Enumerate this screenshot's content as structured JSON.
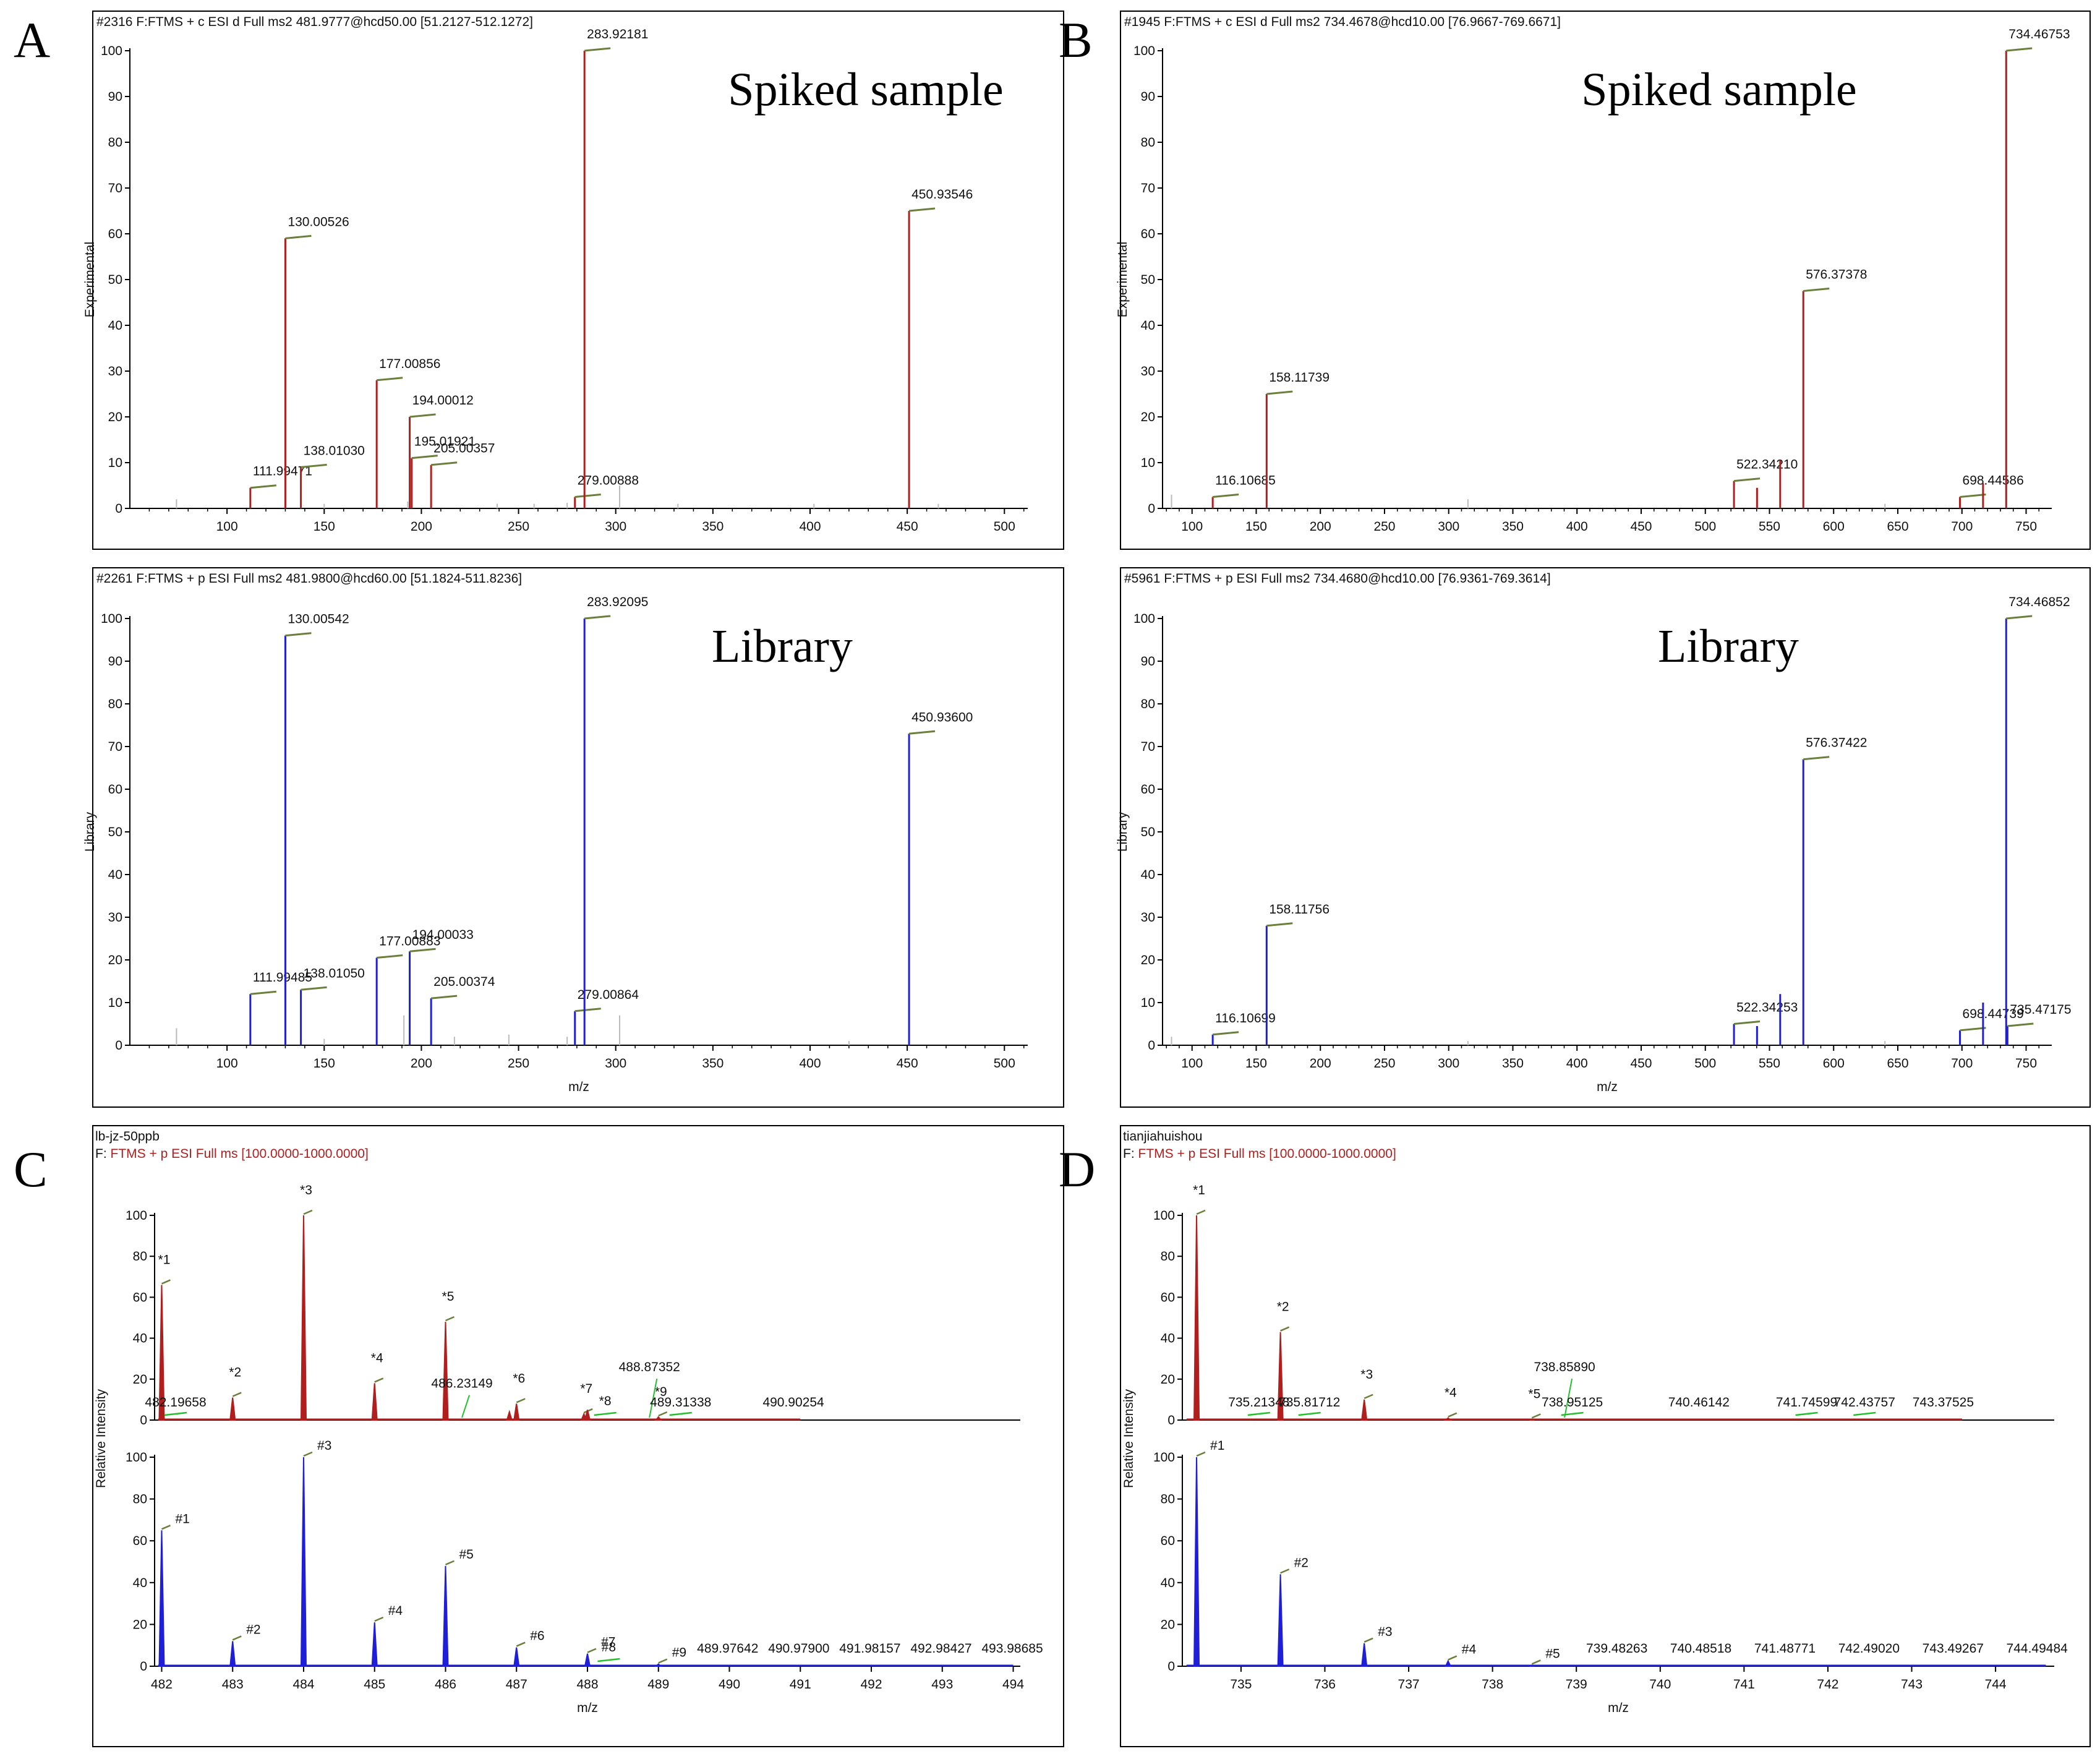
{
  "figure": {
    "colors": {
      "red": "#b01e1e",
      "blue": "#1f1fd8",
      "green": "#6a7f3a",
      "lightgreen": "#22c02a",
      "grey": "#bbbbbb"
    },
    "panel_letters": [
      "A",
      "B",
      "C",
      "D"
    ]
  },
  "chart_data": [
    {
      "id": "A-top",
      "type": "bar",
      "color": "red",
      "letter": "A",
      "header": "#2316  F:FTMS + c ESI d Full ms2 481.9777@hcd50.00 [51.2127-512.1272]",
      "ylabel": "Experimental",
      "xlabel": "",
      "big_label": "Spiked sample",
      "xlim": [
        50,
        512
      ],
      "ylim": [
        0,
        100
      ],
      "xticks": [
        100,
        150,
        200,
        250,
        300,
        350,
        400,
        450,
        500
      ],
      "yticks": [
        0,
        10,
        20,
        30,
        40,
        50,
        60,
        70,
        80,
        90,
        100
      ],
      "peaks": [
        {
          "x": 111.99471,
          "y": 4.5,
          "label": "111.99471"
        },
        {
          "x": 130.00526,
          "y": 59,
          "label": "130.00526"
        },
        {
          "x": 138.0103,
          "y": 9,
          "label": "138.01030"
        },
        {
          "x": 177.00856,
          "y": 28,
          "label": "177.00856"
        },
        {
          "x": 194.00012,
          "y": 20,
          "label": "194.00012"
        },
        {
          "x": 195.01921,
          "y": 11,
          "label": "195.01921"
        },
        {
          "x": 205.00357,
          "y": 9.5,
          "label": "205.00357"
        },
        {
          "x": 279.00888,
          "y": 2.5,
          "label": "279.00888"
        },
        {
          "x": 283.92181,
          "y": 100,
          "label": "283.92181"
        },
        {
          "x": 450.93546,
          "y": 65,
          "label": "450.93546"
        }
      ],
      "minor": [
        [
          74,
          2
        ],
        [
          150,
          1
        ],
        [
          193,
          1.5
        ],
        [
          239,
          1
        ],
        [
          258,
          1
        ],
        [
          275,
          1.2
        ],
        [
          302,
          5
        ],
        [
          332,
          1
        ],
        [
          402,
          1
        ],
        [
          466,
          1
        ]
      ]
    },
    {
      "id": "A-bot",
      "type": "bar",
      "color": "blue",
      "letter": "",
      "header": "#2261  F:FTMS + p ESI Full ms2 481.9800@hcd60.00 [51.1824-511.8236]",
      "ylabel": "Library",
      "xlabel": "m/z",
      "big_label": "Library",
      "xlim": [
        50,
        512
      ],
      "ylim": [
        0,
        100
      ],
      "xticks": [
        100,
        150,
        200,
        250,
        300,
        350,
        400,
        450,
        500
      ],
      "yticks": [
        0,
        10,
        20,
        30,
        40,
        50,
        60,
        70,
        80,
        90,
        100
      ],
      "peaks": [
        {
          "x": 111.99485,
          "y": 12,
          "label": "111.99485"
        },
        {
          "x": 130.00542,
          "y": 96,
          "label": "130.00542"
        },
        {
          "x": 138.0105,
          "y": 13,
          "label": "138.01050"
        },
        {
          "x": 177.00883,
          "y": 20.5,
          "label": "177.00883"
        },
        {
          "x": 194.00033,
          "y": 22,
          "label": "194.00033"
        },
        {
          "x": 205.00374,
          "y": 11,
          "label": "205.00374"
        },
        {
          "x": 279.00864,
          "y": 8,
          "label": "279.00864"
        },
        {
          "x": 283.92095,
          "y": 100,
          "label": "283.92095"
        },
        {
          "x": 450.936,
          "y": 73,
          "label": "450.93600"
        }
      ],
      "minor": [
        [
          74,
          4
        ],
        [
          150,
          1.5
        ],
        [
          191,
          7
        ],
        [
          217,
          2
        ],
        [
          245,
          2.5
        ],
        [
          275,
          2
        ],
        [
          302,
          7
        ],
        [
          420,
          1
        ]
      ]
    },
    {
      "id": "B-top",
      "type": "bar",
      "color": "red",
      "letter": "B",
      "header": "#1945  F:FTMS + c ESI d Full ms2 734.4678@hcd10.00 [76.9667-769.6671]",
      "ylabel": "Experimental",
      "xlabel": "",
      "big_label": "Spiked sample",
      "xlim": [
        77,
        770
      ],
      "ylim": [
        0,
        100
      ],
      "xticks": [
        100,
        150,
        200,
        250,
        300,
        350,
        400,
        450,
        500,
        550,
        600,
        650,
        700,
        750
      ],
      "yticks": [
        0,
        10,
        20,
        30,
        40,
        50,
        60,
        70,
        80,
        90,
        100
      ],
      "peaks": [
        {
          "x": 116.10685,
          "y": 2.5,
          "label": "116.10685"
        },
        {
          "x": 158.11739,
          "y": 25,
          "label": "158.11739"
        },
        {
          "x": 522.3421,
          "y": 6,
          "label": "522.34210"
        },
        {
          "x": 540.3,
          "y": 4.5,
          "label": ""
        },
        {
          "x": 558.35,
          "y": 10.5,
          "label": ""
        },
        {
          "x": 576.37378,
          "y": 47.5,
          "label": "576.37378"
        },
        {
          "x": 698.44586,
          "y": 2.5,
          "label": "698.44586"
        },
        {
          "x": 716.45,
          "y": 5.5,
          "label": ""
        },
        {
          "x": 734.46753,
          "y": 100,
          "label": "734.46753"
        }
      ],
      "minor": [
        [
          84,
          3
        ],
        [
          315,
          2
        ],
        [
          640,
          1
        ]
      ]
    },
    {
      "id": "B-bot",
      "type": "bar",
      "color": "blue",
      "letter": "",
      "header": "#5961  F:FTMS + p ESI Full ms2 734.4680@hcd10.00 [76.9361-769.3614]",
      "ylabel": "Library",
      "xlabel": "m/z",
      "big_label": "Library",
      "xlim": [
        77,
        770
      ],
      "ylim": [
        0,
        100
      ],
      "xticks": [
        100,
        150,
        200,
        250,
        300,
        350,
        400,
        450,
        500,
        550,
        600,
        650,
        700,
        750
      ],
      "yticks": [
        0,
        10,
        20,
        30,
        40,
        50,
        60,
        70,
        80,
        90,
        100
      ],
      "peaks": [
        {
          "x": 116.10699,
          "y": 2.5,
          "label": "116.10699"
        },
        {
          "x": 158.11756,
          "y": 28,
          "label": "158.11756"
        },
        {
          "x": 522.34253,
          "y": 5,
          "label": "522.34253"
        },
        {
          "x": 540.3,
          "y": 4.5,
          "label": ""
        },
        {
          "x": 558.35,
          "y": 12,
          "label": ""
        },
        {
          "x": 576.37422,
          "y": 67,
          "label": "576.37422"
        },
        {
          "x": 698.44739,
          "y": 3.5,
          "label": "698.44739"
        },
        {
          "x": 716.45,
          "y": 10,
          "label": ""
        },
        {
          "x": 734.46852,
          "y": 100,
          "label": "734.46852"
        },
        {
          "x": 735.47175,
          "y": 4.5,
          "label": "735.47175"
        }
      ],
      "minor": [
        [
          84,
          2
        ],
        [
          315,
          1
        ],
        [
          640,
          1
        ]
      ]
    },
    {
      "id": "C-top",
      "type": "bar",
      "color": "red",
      "letter": "C",
      "sample_name": "lb-jz-50ppb",
      "header_prefix": "F:",
      "header": "FTMS + p ESI Full ms [100.0000-1000.0000]",
      "ylabel": "",
      "xlabel": "",
      "shared_ylabel": "Relative Intensity",
      "xlim": [
        481.9,
        494.1
      ],
      "ylim": [
        0,
        100
      ],
      "line_end": 491.0,
      "xticks": [],
      "yticks": [
        0,
        20,
        40,
        60,
        80,
        100
      ],
      "peaks": [
        {
          "x": 482.0,
          "y": 66,
          "label": "*1",
          "mark": true
        },
        {
          "x": 483.0,
          "y": 11,
          "label": "*2",
          "mark": true
        },
        {
          "x": 484.0,
          "y": 100,
          "label": "*3",
          "mark": true
        },
        {
          "x": 485.0,
          "y": 18,
          "label": "*4",
          "mark": true
        },
        {
          "x": 486.0,
          "y": 48,
          "label": "*5",
          "mark": true
        },
        {
          "x": 486.9,
          "y": 4,
          "label": "",
          "mark": false
        },
        {
          "x": 487.0,
          "y": 8,
          "label": "*6",
          "mark": true
        },
        {
          "x": 487.95,
          "y": 3,
          "label": "*7",
          "mark": true
        },
        {
          "x": 488.0,
          "y": 5,
          "label": "",
          "mark": false
        },
        {
          "x": 489.0,
          "y": 1.5,
          "label": "*9",
          "mark": true
        }
      ],
      "notes": [
        {
          "x": 488.25,
          "y": 1.5,
          "label": "*8",
          "color": "red",
          "leader": "green"
        },
        {
          "x": 482.19658,
          "y": 0,
          "label": "482.19658",
          "color": "black",
          "leader": "green"
        },
        {
          "x": 486.23149,
          "y": 14,
          "label": "486.23149",
          "color": "black",
          "leader": "green"
        },
        {
          "x": 488.87352,
          "y": 22,
          "label": "488.87352",
          "color": "black",
          "leader": "green"
        },
        {
          "x": 489.31338,
          "y": 0,
          "label": "489.31338",
          "color": "black",
          "leader": "green"
        },
        {
          "x": 490.90254,
          "y": 0,
          "label": "490.90254",
          "color": "black",
          "leader": "none"
        }
      ]
    },
    {
      "id": "C-bot",
      "type": "bar",
      "color": "blue",
      "letter": "",
      "ylabel": "",
      "xlabel": "m/z",
      "xlim": [
        481.9,
        494.1
      ],
      "ylim": [
        0,
        100
      ],
      "line_end": 494.0,
      "xticks": [
        482,
        483,
        484,
        485,
        486,
        487,
        488,
        489,
        490,
        491,
        492,
        493,
        494
      ],
      "yticks": [
        0,
        20,
        40,
        60,
        80,
        100
      ],
      "peaks": [
        {
          "x": 482.0,
          "y": 65,
          "label": "#1",
          "mark": true
        },
        {
          "x": 483.0,
          "y": 12,
          "label": "#2",
          "mark": true
        },
        {
          "x": 484.0,
          "y": 100,
          "label": "#3",
          "mark": true
        },
        {
          "x": 485.0,
          "y": 21,
          "label": "#4",
          "mark": true
        },
        {
          "x": 486.0,
          "y": 48,
          "label": "#5",
          "mark": true
        },
        {
          "x": 487.0,
          "y": 9,
          "label": "#6",
          "mark": true
        },
        {
          "x": 488.0,
          "y": 6,
          "label": "#7",
          "mark": true
        },
        {
          "x": 489.0,
          "y": 1,
          "label": "#9",
          "mark": true
        }
      ],
      "notes": [
        {
          "x": 488.3,
          "y": 1.5,
          "label": "#8",
          "color": "blue",
          "leader": "green"
        },
        {
          "x": 489.97642,
          "y": 0,
          "label": "489.97642",
          "color": "black",
          "leader": "none"
        },
        {
          "x": 490.979,
          "y": 0,
          "label": "490.97900",
          "color": "black",
          "leader": "none"
        },
        {
          "x": 491.98157,
          "y": 0,
          "label": "491.98157",
          "color": "black",
          "leader": "none"
        },
        {
          "x": 492.98427,
          "y": 0,
          "label": "492.98427",
          "color": "black",
          "leader": "none"
        },
        {
          "x": 493.98685,
          "y": 0,
          "label": "493.98685",
          "color": "black",
          "leader": "none"
        }
      ]
    },
    {
      "id": "D-top",
      "type": "bar",
      "color": "red",
      "letter": "D",
      "sample_name": "tianjiahuishou",
      "header_prefix": "F:",
      "header": "FTMS + p ESI Full ms [100.0000-1000.0000]",
      "ylabel": "",
      "xlabel": "",
      "shared_ylabel": "Relative Intensity",
      "xlim": [
        734.3,
        744.7
      ],
      "ylim": [
        0,
        100
      ],
      "line_end": 743.6,
      "xticks": [],
      "yticks": [
        0,
        20,
        40,
        60,
        80,
        100
      ],
      "peaks": [
        {
          "x": 734.47,
          "y": 100,
          "label": "*1",
          "mark": true
        },
        {
          "x": 735.47,
          "y": 43,
          "label": "*2",
          "mark": true
        },
        {
          "x": 736.47,
          "y": 10,
          "label": "*3",
          "mark": true
        },
        {
          "x": 737.47,
          "y": 1,
          "label": "*4",
          "mark": true
        },
        {
          "x": 738.47,
          "y": 0.5,
          "label": "*5",
          "mark": true
        }
      ],
      "notes": [
        {
          "x": 735.21348,
          "y": 0,
          "label": "735.21348",
          "color": "black",
          "leader": "green"
        },
        {
          "x": 735.81712,
          "y": 0,
          "label": "735.81712",
          "color": "black",
          "leader": "green"
        },
        {
          "x": 738.8589,
          "y": 22,
          "label": "738.85890",
          "color": "black",
          "leader": "green"
        },
        {
          "x": 738.95125,
          "y": 0,
          "label": "738.95125",
          "color": "black",
          "leader": "green"
        },
        {
          "x": 740.46142,
          "y": 0,
          "label": "740.46142",
          "color": "black",
          "leader": "none"
        },
        {
          "x": 741.74599,
          "y": 0,
          "label": "741.74599",
          "color": "black",
          "leader": "green"
        },
        {
          "x": 742.43757,
          "y": 0,
          "label": "742.43757",
          "color": "black",
          "leader": "green"
        },
        {
          "x": 743.37525,
          "y": 0,
          "label": "743.37525",
          "color": "black",
          "leader": "none"
        }
      ]
    },
    {
      "id": "D-bot",
      "type": "bar",
      "color": "blue",
      "letter": "",
      "ylabel": "",
      "xlabel": "m/z",
      "xlim": [
        734.3,
        744.7
      ],
      "ylim": [
        0,
        100
      ],
      "line_end": 744.6,
      "xticks": [
        735,
        736,
        737,
        738,
        739,
        740,
        741,
        742,
        743,
        744
      ],
      "yticks": [
        0,
        20,
        40,
        60,
        80,
        100
      ],
      "peaks": [
        {
          "x": 734.47,
          "y": 100,
          "label": "#1",
          "mark": true
        },
        {
          "x": 735.47,
          "y": 44,
          "label": "#2",
          "mark": true
        },
        {
          "x": 736.47,
          "y": 11,
          "label": "#3",
          "mark": true
        },
        {
          "x": 737.47,
          "y": 2.5,
          "label": "#4",
          "mark": true
        },
        {
          "x": 738.47,
          "y": 0.5,
          "label": "#5",
          "mark": true
        }
      ],
      "notes": [
        {
          "x": 739.48263,
          "y": 0,
          "label": "739.48263",
          "color": "black",
          "leader": "none"
        },
        {
          "x": 740.48518,
          "y": 0,
          "label": "740.48518",
          "color": "black",
          "leader": "none"
        },
        {
          "x": 741.48771,
          "y": 0,
          "label": "741.48771",
          "color": "black",
          "leader": "none"
        },
        {
          "x": 742.4902,
          "y": 0,
          "label": "742.49020",
          "color": "black",
          "leader": "none"
        },
        {
          "x": 743.49267,
          "y": 0,
          "label": "743.49267",
          "color": "black",
          "leader": "none"
        },
        {
          "x": 744.49484,
          "y": 0,
          "label": "744.49484",
          "color": "black",
          "leader": "none"
        }
      ]
    }
  ]
}
